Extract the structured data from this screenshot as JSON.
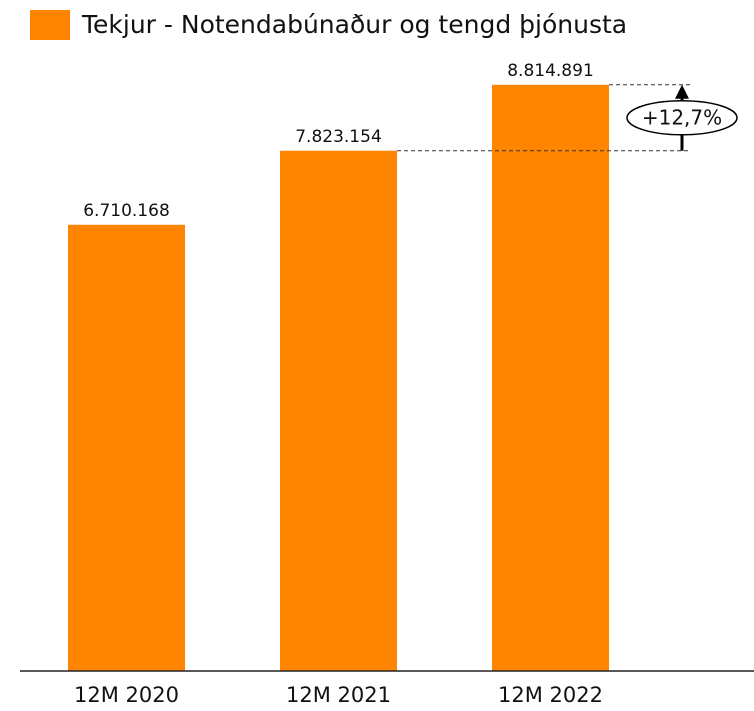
{
  "chart_data": {
    "type": "bar",
    "categories": [
      "12M 2020",
      "12M 2021",
      "12M 2022"
    ],
    "series": [
      {
        "name": "Tekjur - Notendabúnaður og tengd þjónusta",
        "color": "#ff8400",
        "values": [
          6710168,
          7823154,
          8814891
        ],
        "value_labels": [
          "6.710.168",
          "7.823.154",
          "8.814.891"
        ]
      }
    ],
    "ylim": [
      0,
      10000000
    ],
    "annotation": "+12,7%"
  }
}
